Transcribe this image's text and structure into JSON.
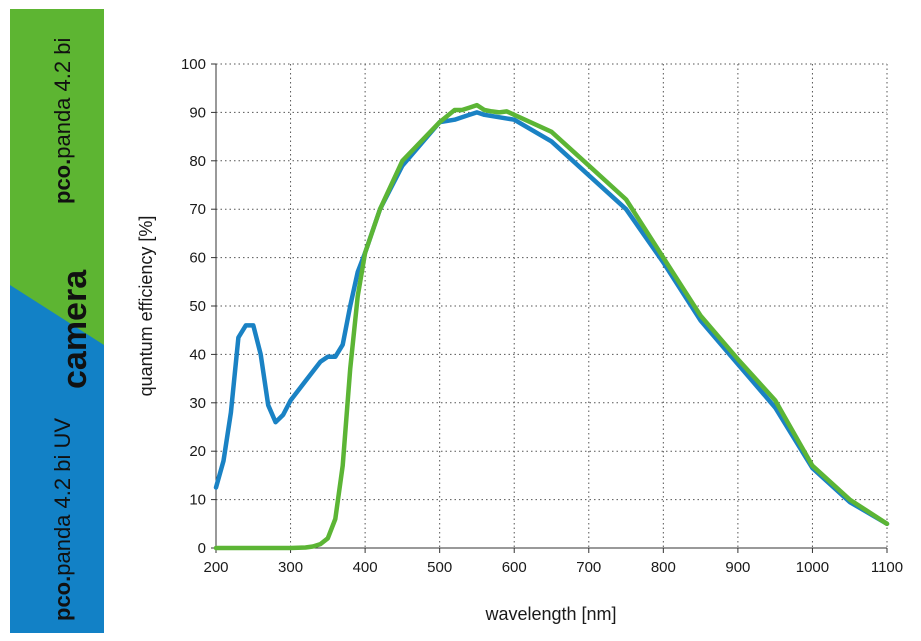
{
  "banner": {
    "top_product_prefix": "pco.",
    "top_product_name": "panda 4.2 bi",
    "word": "camera",
    "bottom_product_prefix": "pco.",
    "bottom_product_name": "panda 4.2 bi UV",
    "colors": {
      "green": "#5db532",
      "blue": "#1281c6"
    }
  },
  "chart_data": {
    "type": "line",
    "title": "",
    "xlabel": "wavelength [nm]",
    "ylabel": "quantum efficiency [%]",
    "xlim": [
      200,
      1100
    ],
    "ylim": [
      0,
      100
    ],
    "xticks": [
      200,
      300,
      400,
      500,
      600,
      700,
      800,
      900,
      1000,
      1100
    ],
    "yticks": [
      0,
      10,
      20,
      30,
      40,
      50,
      60,
      70,
      80,
      90,
      100
    ],
    "grid": true,
    "legend": "none",
    "series": [
      {
        "name": "pco.panda 4.2 bi UV",
        "color": "#1a82c4",
        "x": [
          200,
          210,
          220,
          230,
          240,
          250,
          260,
          270,
          280,
          290,
          300,
          320,
          340,
          350,
          360,
          370,
          380,
          390,
          400,
          420,
          450,
          500,
          520,
          540,
          550,
          560,
          600,
          650,
          700,
          750,
          800,
          850,
          900,
          950,
          1000,
          1050,
          1100
        ],
        "y": [
          12.5,
          18,
          28,
          43.5,
          46,
          46,
          40,
          29.5,
          26,
          27.5,
          30.5,
          34.5,
          38.5,
          39.5,
          39.5,
          42,
          50,
          57,
          61,
          70,
          79,
          88,
          88.5,
          89.5,
          90,
          89.5,
          88.5,
          84,
          77,
          70,
          59,
          47,
          38,
          29,
          16.5,
          9.5,
          5
        ]
      },
      {
        "name": "pco.panda 4.2 bi",
        "color": "#5cb535",
        "x": [
          200,
          250,
          300,
          320,
          330,
          340,
          350,
          360,
          370,
          380,
          390,
          400,
          420,
          450,
          500,
          520,
          530,
          540,
          550,
          560,
          570,
          580,
          590,
          600,
          650,
          700,
          750,
          800,
          850,
          900,
          950,
          1000,
          1050,
          1100
        ],
        "y": [
          0,
          0,
          0,
          0.1,
          0.3,
          0.8,
          2,
          6,
          17,
          37,
          52,
          61,
          70,
          80,
          88,
          90.5,
          90.5,
          91,
          91.5,
          90.5,
          90.2,
          90,
          90.2,
          89.5,
          86,
          79,
          72,
          60,
          48,
          39,
          30.5,
          17,
          10,
          5
        ]
      }
    ]
  }
}
